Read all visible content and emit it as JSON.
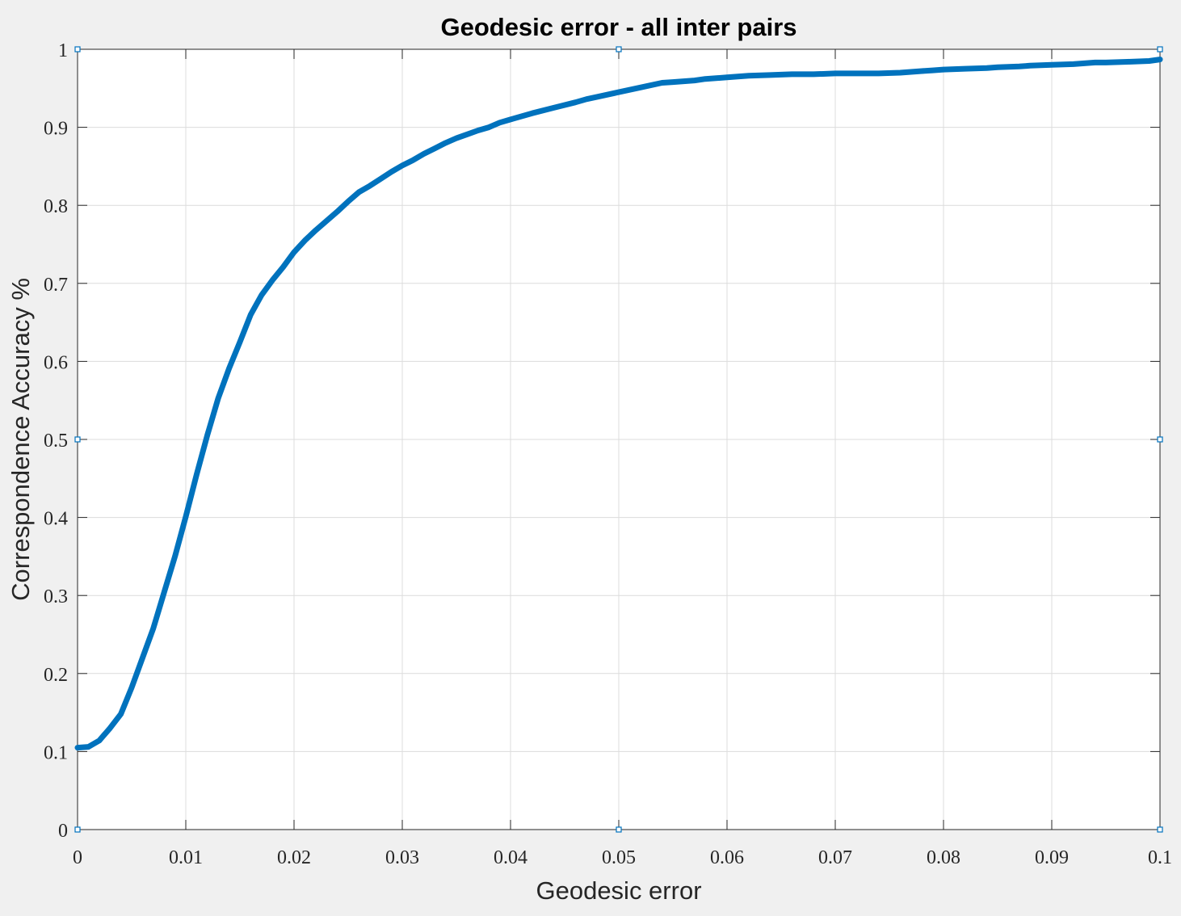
{
  "chart_data": {
    "type": "line",
    "title": "Geodesic error - all inter pairs",
    "xlabel": "Geodesic error",
    "ylabel": "Correspondence Accuracy %",
    "xlim": [
      0,
      0.1
    ],
    "ylim": [
      0,
      1
    ],
    "grid": true,
    "legend": "none",
    "line_color": "#0072bd",
    "x_ticks": [
      "0",
      "0.01",
      "0.02",
      "0.03",
      "0.04",
      "0.05",
      "0.06",
      "0.07",
      "0.08",
      "0.09",
      "0.1"
    ],
    "y_ticks": [
      "0",
      "0.1",
      "0.2",
      "0.3",
      "0.4",
      "0.5",
      "0.6",
      "0.7",
      "0.8",
      "0.9",
      "1"
    ],
    "series": [
      {
        "x": [
          0,
          0.001,
          0.002,
          0.003,
          0.004,
          0.005,
          0.006,
          0.007,
          0.008,
          0.009,
          0.01,
          0.011,
          0.012,
          0.013,
          0.014,
          0.015,
          0.016,
          0.017,
          0.018,
          0.019,
          0.02,
          0.021,
          0.022,
          0.023,
          0.024,
          0.025,
          0.026,
          0.027,
          0.028,
          0.029,
          0.03,
          0.031,
          0.032,
          0.033,
          0.034,
          0.035,
          0.036,
          0.037,
          0.038,
          0.039,
          0.04,
          0.042,
          0.044,
          0.046,
          0.047,
          0.048,
          0.05,
          0.052,
          0.054,
          0.055,
          0.057,
          0.058,
          0.06,
          0.062,
          0.064,
          0.066,
          0.068,
          0.07,
          0.072,
          0.074,
          0.076,
          0.078,
          0.079,
          0.08,
          0.082,
          0.084,
          0.085,
          0.087,
          0.088,
          0.09,
          0.092,
          0.094,
          0.095,
          0.097,
          0.099,
          0.1
        ],
        "y": [
          0.105,
          0.106,
          0.114,
          0.13,
          0.148,
          0.182,
          0.22,
          0.258,
          0.304,
          0.35,
          0.401,
          0.455,
          0.506,
          0.553,
          0.591,
          0.625,
          0.66,
          0.685,
          0.704,
          0.721,
          0.74,
          0.755,
          0.768,
          0.78,
          0.792,
          0.805,
          0.817,
          0.825,
          0.834,
          0.843,
          0.851,
          0.858,
          0.866,
          0.873,
          0.88,
          0.886,
          0.891,
          0.896,
          0.9,
          0.906,
          0.91,
          0.918,
          0.925,
          0.932,
          0.936,
          0.939,
          0.945,
          0.951,
          0.957,
          0.958,
          0.96,
          0.962,
          0.964,
          0.966,
          0.967,
          0.968,
          0.968,
          0.969,
          0.969,
          0.969,
          0.97,
          0.972,
          0.973,
          0.974,
          0.975,
          0.976,
          0.977,
          0.978,
          0.979,
          0.98,
          0.981,
          0.983,
          0.983,
          0.984,
          0.985,
          0.987
        ]
      }
    ]
  }
}
